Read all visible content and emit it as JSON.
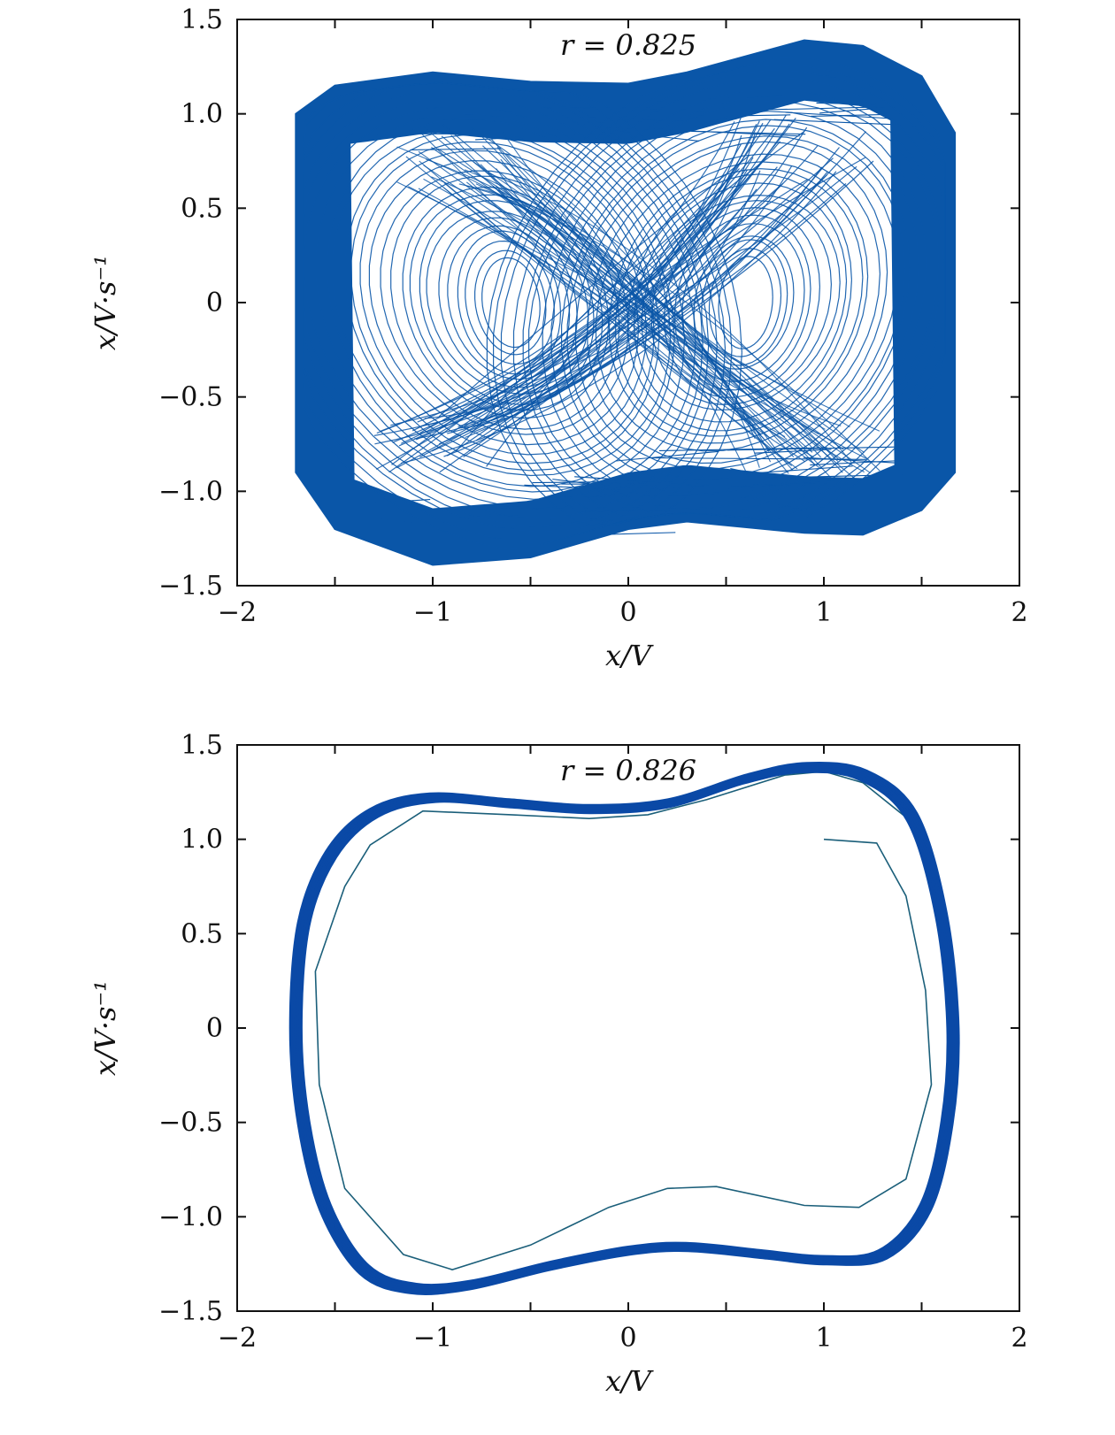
{
  "chart_data": [
    {
      "type": "line",
      "variant": "phase-portrait",
      "annotation": "r = 0.825",
      "xlabel": "x/V",
      "ylabel": "x/V·s⁻¹",
      "xlim": [
        -2,
        2
      ],
      "ylim": [
        -1.5,
        1.5
      ],
      "xticks": [
        -2,
        -1,
        0,
        1,
        2
      ],
      "xtick_labels": [
        "−2",
        "−1",
        "0",
        "1",
        "2"
      ],
      "yticks": [
        -1.5,
        -1.0,
        -0.5,
        0,
        0.5,
        1.0,
        1.5
      ],
      "ytick_labels": [
        "−1.5",
        "−1.0",
        "−0.5",
        "0",
        "0.5",
        "1.0",
        "1.5"
      ],
      "grid": false,
      "color": "#0a56a8",
      "behavior": "chaotic double-scroll attractor",
      "x_range": [
        -1.7,
        1.67
      ],
      "y_range": [
        -1.4,
        1.4
      ],
      "envelope_top": [
        [
          -1.7,
          1.0
        ],
        [
          -1.5,
          1.15
        ],
        [
          -1.0,
          1.22
        ],
        [
          -0.5,
          1.17
        ],
        [
          0.0,
          1.16
        ],
        [
          0.3,
          1.22
        ],
        [
          0.9,
          1.39
        ],
        [
          1.2,
          1.36
        ],
        [
          1.5,
          1.2
        ],
        [
          1.67,
          0.9
        ]
      ],
      "envelope_bottom": [
        [
          -1.7,
          -0.9
        ],
        [
          -1.5,
          -1.2
        ],
        [
          -1.0,
          -1.39
        ],
        [
          -0.5,
          -1.35
        ],
        [
          0.0,
          -1.2
        ],
        [
          0.3,
          -1.16
        ],
        [
          0.9,
          -1.22
        ],
        [
          1.2,
          -1.23
        ],
        [
          1.5,
          -1.1
        ],
        [
          1.67,
          -0.9
        ]
      ],
      "scroll_centers": [
        [
          -0.6,
          0.0
        ],
        [
          0.6,
          0.0
        ]
      ]
    },
    {
      "type": "line",
      "variant": "phase-portrait",
      "annotation": "r = 0.826",
      "xlabel": "x/V",
      "ylabel": "x/V·s⁻¹",
      "xlim": [
        -2,
        2
      ],
      "ylim": [
        -1.5,
        1.5
      ],
      "xticks": [
        -2,
        -1,
        0,
        1,
        2
      ],
      "xtick_labels": [
        "−2",
        "−1",
        "0",
        "1",
        "2"
      ],
      "yticks": [
        -1.5,
        -1.0,
        -0.5,
        0,
        0.5,
        1.0,
        1.5
      ],
      "ytick_labels": [
        "−1.5",
        "−1.0",
        "−0.5",
        "0",
        "0.5",
        "1.0",
        "1.5"
      ],
      "grid": false,
      "color": "#0a49a6",
      "transient_color": "#1b5f7a",
      "behavior": "limit cycle",
      "limit_cycle": [
        [
          -1.7,
          0.0
        ],
        [
          -1.66,
          0.55
        ],
        [
          -1.52,
          0.92
        ],
        [
          -1.3,
          1.14
        ],
        [
          -1.0,
          1.22
        ],
        [
          -0.6,
          1.19
        ],
        [
          -0.2,
          1.16
        ],
        [
          0.2,
          1.19
        ],
        [
          0.6,
          1.32
        ],
        [
          0.9,
          1.38
        ],
        [
          1.2,
          1.34
        ],
        [
          1.45,
          1.12
        ],
        [
          1.6,
          0.6
        ],
        [
          1.66,
          0.0
        ],
        [
          1.63,
          -0.5
        ],
        [
          1.52,
          -0.95
        ],
        [
          1.3,
          -1.2
        ],
        [
          1.0,
          -1.23
        ],
        [
          0.7,
          -1.2
        ],
        [
          0.3,
          -1.16
        ],
        [
          0.0,
          -1.18
        ],
        [
          -0.4,
          -1.26
        ],
        [
          -0.8,
          -1.36
        ],
        [
          -1.1,
          -1.38
        ],
        [
          -1.35,
          -1.28
        ],
        [
          -1.55,
          -0.95
        ],
        [
          -1.66,
          -0.5
        ]
      ],
      "transient": [
        [
          1.0,
          1.0
        ],
        [
          1.27,
          0.98
        ],
        [
          1.42,
          0.7
        ],
        [
          1.52,
          0.2
        ],
        [
          1.55,
          -0.3
        ],
        [
          1.42,
          -0.8
        ],
        [
          1.18,
          -0.95
        ],
        [
          0.9,
          -0.94
        ],
        [
          0.45,
          -0.84
        ],
        [
          0.2,
          -0.85
        ],
        [
          -0.1,
          -0.95
        ],
        [
          -0.5,
          -1.15
        ],
        [
          -0.9,
          -1.28
        ],
        [
          -1.15,
          -1.2
        ],
        [
          -1.45,
          -0.85
        ],
        [
          -1.58,
          -0.3
        ],
        [
          -1.6,
          0.3
        ],
        [
          -1.45,
          0.75
        ],
        [
          -1.32,
          0.97
        ],
        [
          -1.05,
          1.15
        ],
        [
          -0.6,
          1.13
        ],
        [
          -0.2,
          1.11
        ],
        [
          0.1,
          1.13
        ],
        [
          0.4,
          1.21
        ],
        [
          0.8,
          1.34
        ],
        [
          1.0,
          1.36
        ],
        [
          1.2,
          1.3
        ],
        [
          1.5,
          1.05
        ],
        [
          1.62,
          0.5
        ],
        [
          1.66,
          0.0
        ]
      ]
    }
  ]
}
